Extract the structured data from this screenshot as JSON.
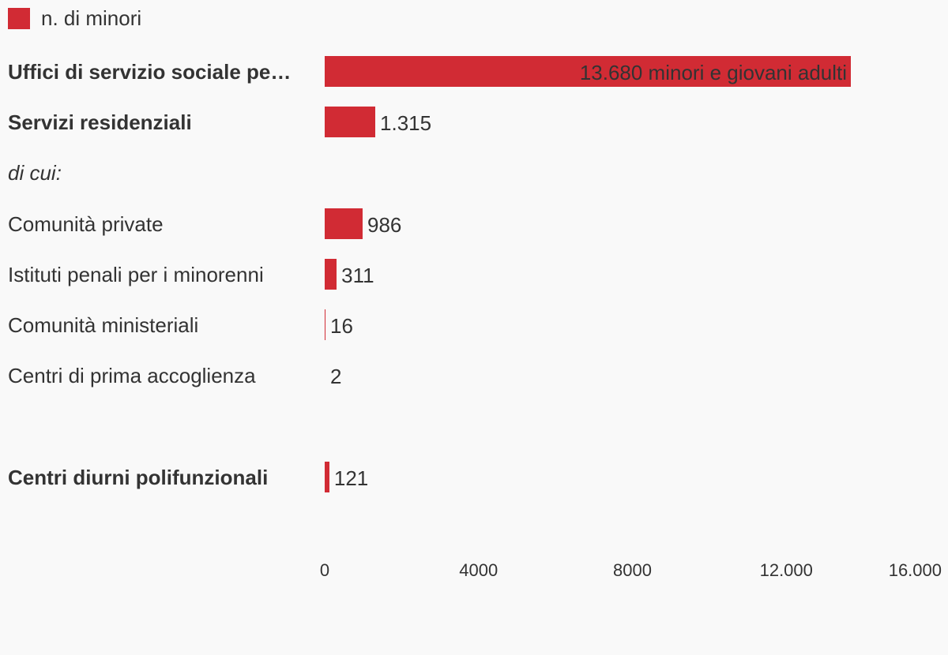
{
  "colors": {
    "bar": "#d12b34",
    "text": "#333333",
    "background": "#f9f9f9"
  },
  "legend": {
    "label": "n. di minori",
    "position": "top-left"
  },
  "chart_data": {
    "type": "bar",
    "orientation": "horizontal",
    "series": [
      {
        "name": "n. di minori"
      }
    ],
    "categories": [
      {
        "label": "Uffici di servizio sociale per i minorenni",
        "display_label": "Uffici di servizio sociale pe…",
        "value": 13680,
        "value_label": "13.680 minori e giovani adulti",
        "style": "bold",
        "label_inside": true
      },
      {
        "label": "Servizi residenziali",
        "value": 1315,
        "value_label": "1.315",
        "style": "bold"
      },
      {
        "label": "di cui:",
        "value": null,
        "value_label": "",
        "style": "italic"
      },
      {
        "label": "Comunità private",
        "value": 986,
        "value_label": "986",
        "style": "normal"
      },
      {
        "label": "Istituti penali per i minorenni",
        "value": 311,
        "value_label": "311",
        "style": "normal"
      },
      {
        "label": "Comunità ministeriali",
        "value": 16,
        "value_label": "16",
        "style": "normal"
      },
      {
        "label": "Centri di prima accoglienza",
        "value": 2,
        "value_label": "2",
        "style": "normal"
      },
      {
        "label": "",
        "value": null,
        "value_label": "",
        "style": "normal"
      },
      {
        "label": "Centri diurni polifunzionali",
        "value": 121,
        "value_label": "121",
        "style": "bold"
      }
    ],
    "xlim": [
      0,
      16000
    ],
    "xticks": [
      {
        "value": 0,
        "label": "0"
      },
      {
        "value": 4000,
        "label": "4000"
      },
      {
        "value": 8000,
        "label": "8000"
      },
      {
        "value": 12000,
        "label": "12.000"
      },
      {
        "value": 16000,
        "label": "16.000"
      }
    ],
    "grid": false
  }
}
